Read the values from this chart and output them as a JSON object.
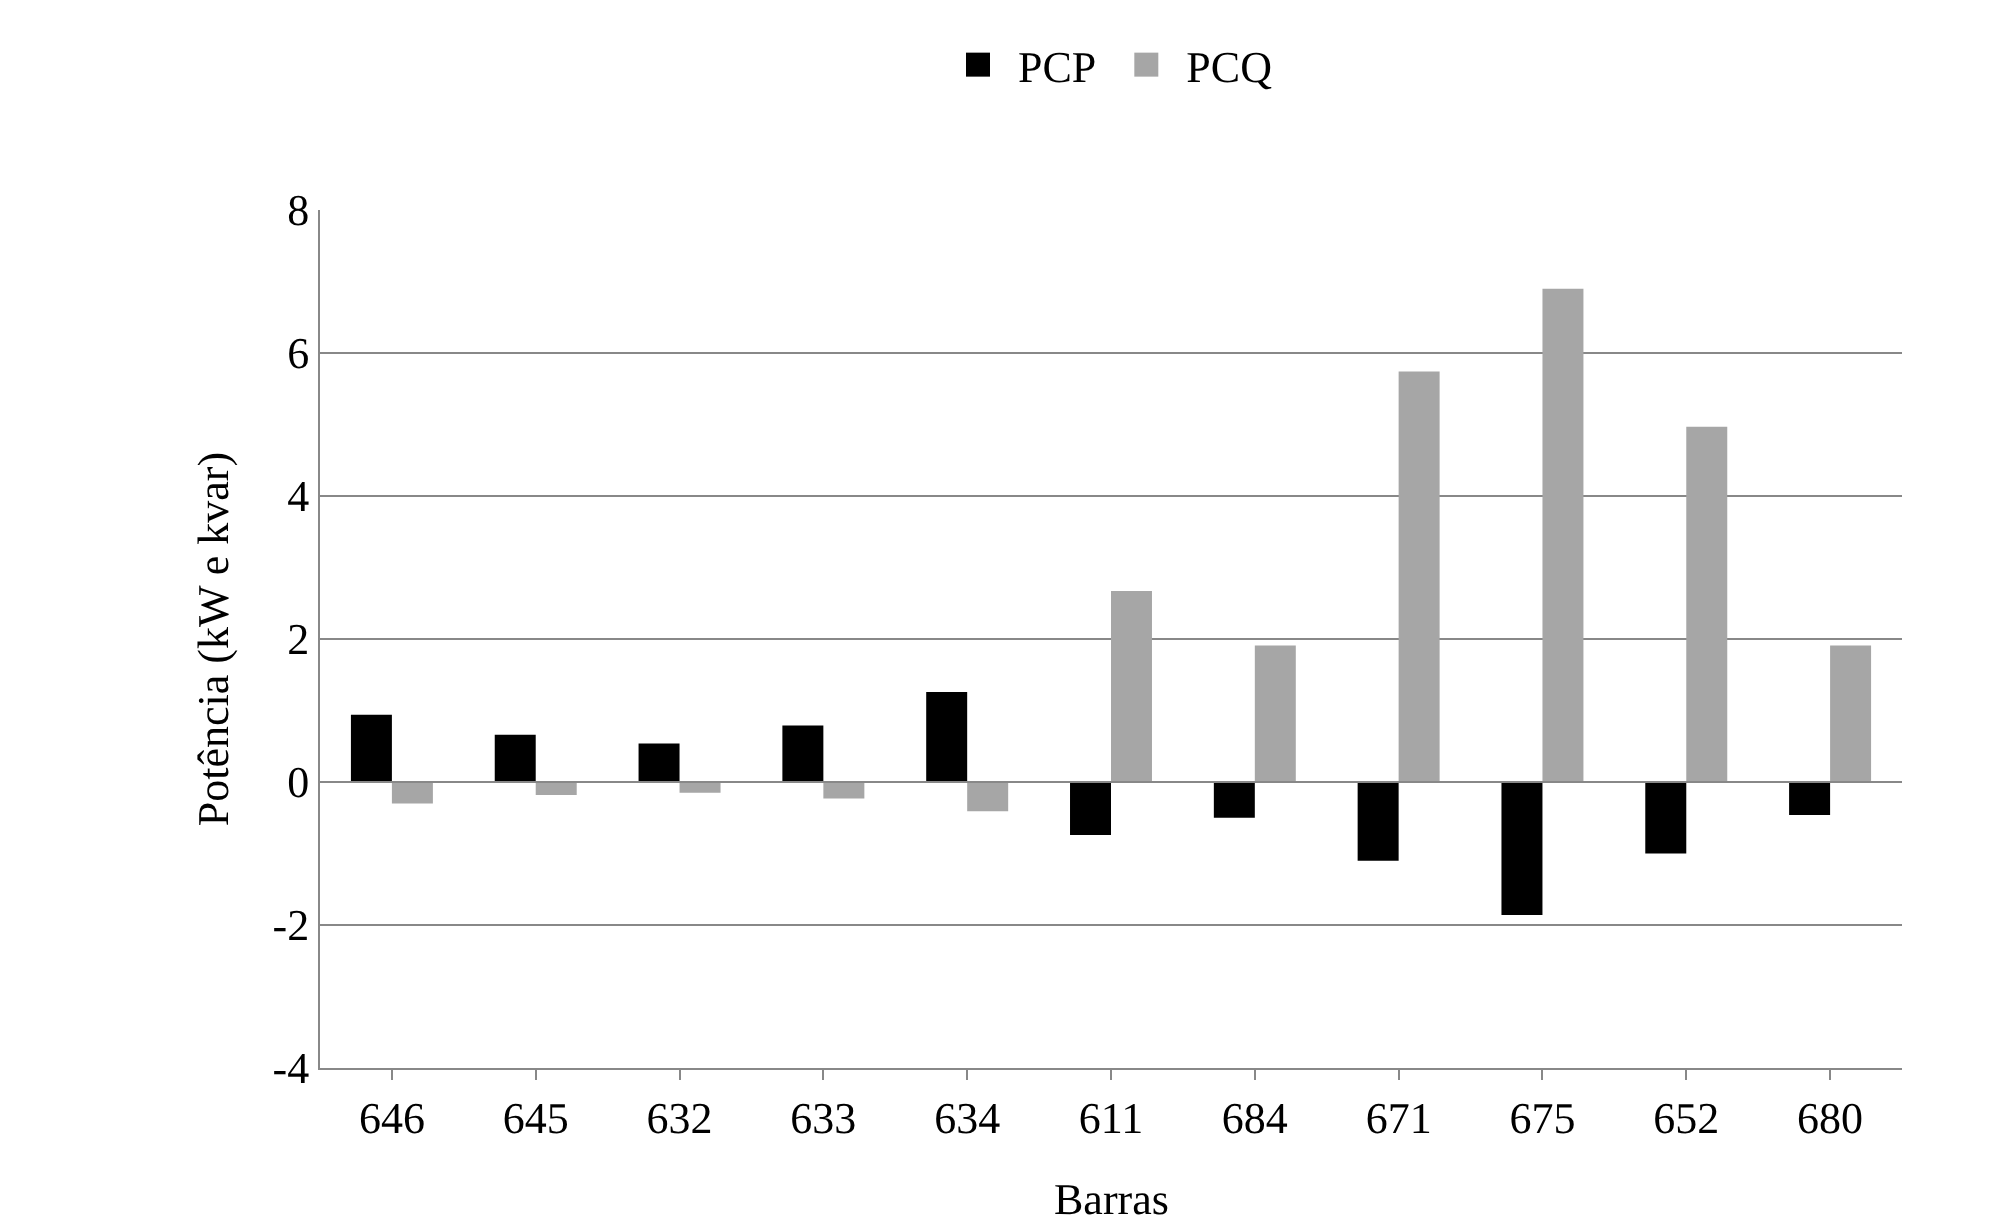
{
  "chart_data": {
    "type": "bar",
    "xlabel": "Barras",
    "ylabel": "Potência (kW e kvar)",
    "categories": [
      "646",
      "645",
      "632",
      "633",
      "634",
      "611",
      "684",
      "671",
      "675",
      "652",
      "680"
    ],
    "series": [
      {
        "name": "PCP",
        "color": "#000000",
        "values": [
          0.94,
          0.66,
          0.54,
          0.79,
          1.26,
          -0.74,
          -0.5,
          -1.1,
          -1.86,
          -1.0,
          -0.46
        ]
      },
      {
        "name": "PCQ",
        "color": "#a6a6a6",
        "values": [
          -0.3,
          -0.18,
          -0.15,
          -0.23,
          -0.41,
          2.67,
          1.91,
          5.74,
          6.9,
          4.97,
          1.91
        ]
      }
    ],
    "ylim": [
      -4,
      8
    ],
    "yticks": [
      -4,
      -2,
      0,
      2,
      4,
      6,
      8
    ],
    "grid": "y",
    "legend": "top"
  }
}
